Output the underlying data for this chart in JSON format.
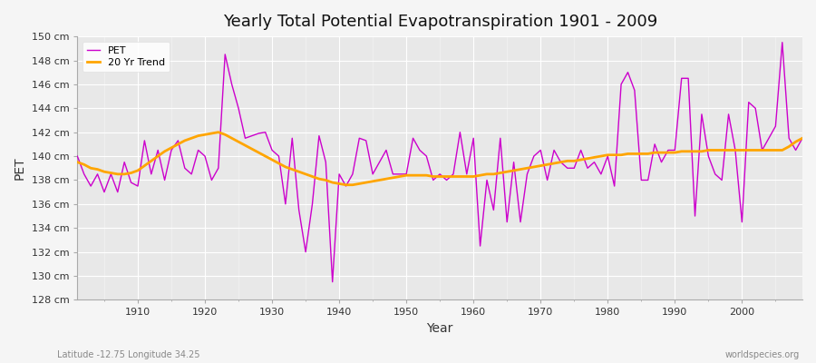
{
  "title": "Yearly Total Potential Evapotranspiration 1901 - 2009",
  "xlabel": "Year",
  "ylabel": "PET",
  "bottom_left_label": "Latitude -12.75 Longitude 34.25",
  "bottom_right_label": "worldspecies.org",
  "ylim": [
    128,
    150
  ],
  "ytick_labels": [
    "128 cm",
    "130 cm",
    "132 cm",
    "134 cm",
    "136 cm",
    "138 cm",
    "140 cm",
    "142 cm",
    "144 cm",
    "146 cm",
    "148 cm",
    "150 cm"
  ],
  "ytick_values": [
    128,
    130,
    132,
    134,
    136,
    138,
    140,
    142,
    144,
    146,
    148,
    150
  ],
  "xtick_values": [
    1910,
    1920,
    1930,
    1940,
    1950,
    1960,
    1970,
    1980,
    1990,
    2000
  ],
  "xlim": [
    1901,
    2009
  ],
  "pet_color": "#cc00cc",
  "trend_color": "#ffa500",
  "fig_bg_color": "#f5f5f5",
  "ax_bg_color": "#e8e8e8",
  "pet_linewidth": 1.0,
  "trend_linewidth": 2.0,
  "years": [
    1901,
    1902,
    1903,
    1904,
    1905,
    1906,
    1907,
    1908,
    1909,
    1910,
    1911,
    1912,
    1913,
    1914,
    1915,
    1916,
    1917,
    1918,
    1919,
    1920,
    1921,
    1922,
    1923,
    1924,
    1925,
    1926,
    1927,
    1928,
    1929,
    1930,
    1931,
    1932,
    1933,
    1934,
    1935,
    1936,
    1937,
    1938,
    1939,
    1940,
    1941,
    1942,
    1943,
    1944,
    1945,
    1946,
    1947,
    1948,
    1949,
    1950,
    1951,
    1952,
    1953,
    1954,
    1955,
    1956,
    1957,
    1958,
    1959,
    1960,
    1961,
    1962,
    1963,
    1964,
    1965,
    1966,
    1967,
    1968,
    1969,
    1970,
    1971,
    1972,
    1973,
    1974,
    1975,
    1976,
    1977,
    1978,
    1979,
    1980,
    1981,
    1982,
    1983,
    1984,
    1985,
    1986,
    1987,
    1988,
    1989,
    1990,
    1991,
    1992,
    1993,
    1994,
    1995,
    1996,
    1997,
    1998,
    1999,
    2000,
    2001,
    2002,
    2003,
    2004,
    2005,
    2006,
    2007,
    2008,
    2009
  ],
  "pet_values": [
    140.0,
    138.5,
    137.5,
    138.5,
    137.0,
    138.5,
    137.0,
    139.5,
    137.8,
    137.5,
    141.3,
    138.5,
    140.5,
    138.0,
    140.5,
    141.3,
    139.0,
    138.5,
    140.5,
    140.0,
    138.0,
    139.0,
    148.5,
    146.0,
    144.0,
    141.5,
    141.7,
    141.9,
    142.0,
    140.5,
    140.0,
    136.0,
    141.5,
    135.5,
    132.0,
    136.0,
    141.7,
    139.5,
    129.5,
    138.5,
    137.5,
    138.5,
    141.5,
    141.3,
    138.5,
    139.5,
    140.5,
    138.5,
    138.5,
    138.5,
    141.5,
    140.5,
    140.0,
    138.0,
    138.5,
    138.0,
    138.5,
    142.0,
    138.5,
    141.5,
    132.5,
    138.0,
    135.5,
    141.5,
    134.5,
    139.5,
    134.5,
    138.5,
    140.0,
    140.5,
    138.0,
    140.5,
    139.5,
    139.0,
    139.0,
    140.5,
    139.0,
    139.5,
    138.5,
    140.0,
    137.5,
    146.0,
    147.0,
    145.5,
    138.0,
    138.0,
    141.0,
    139.5,
    140.5,
    140.5,
    146.5,
    146.5,
    135.0,
    143.5,
    140.0,
    138.5,
    138.0,
    143.5,
    140.5,
    134.5,
    144.5,
    144.0,
    140.5,
    141.5,
    142.5,
    149.5,
    141.5,
    140.5,
    141.5
  ],
  "trend_values": [
    139.5,
    139.3,
    139.0,
    138.9,
    138.7,
    138.6,
    138.5,
    138.5,
    138.6,
    138.8,
    139.2,
    139.6,
    140.0,
    140.4,
    140.7,
    141.0,
    141.3,
    141.5,
    141.7,
    141.8,
    141.9,
    142.0,
    141.8,
    141.5,
    141.2,
    140.9,
    140.6,
    140.3,
    140.0,
    139.7,
    139.4,
    139.1,
    138.9,
    138.7,
    138.5,
    138.3,
    138.1,
    138.0,
    137.8,
    137.7,
    137.6,
    137.6,
    137.7,
    137.8,
    137.9,
    138.0,
    138.1,
    138.2,
    138.3,
    138.4,
    138.4,
    138.4,
    138.4,
    138.3,
    138.3,
    138.3,
    138.3,
    138.3,
    138.3,
    138.3,
    138.4,
    138.5,
    138.5,
    138.6,
    138.7,
    138.8,
    138.9,
    139.0,
    139.1,
    139.2,
    139.3,
    139.4,
    139.5,
    139.6,
    139.6,
    139.7,
    139.8,
    139.9,
    140.0,
    140.1,
    140.1,
    140.1,
    140.2,
    140.2,
    140.2,
    140.2,
    140.3,
    140.3,
    140.3,
    140.3,
    140.4,
    140.4,
    140.4,
    140.4,
    140.5,
    140.5,
    140.5,
    140.5,
    140.5,
    140.5,
    140.5,
    140.5,
    140.5,
    140.5,
    140.5,
    140.5,
    140.8,
    141.2,
    141.5
  ]
}
